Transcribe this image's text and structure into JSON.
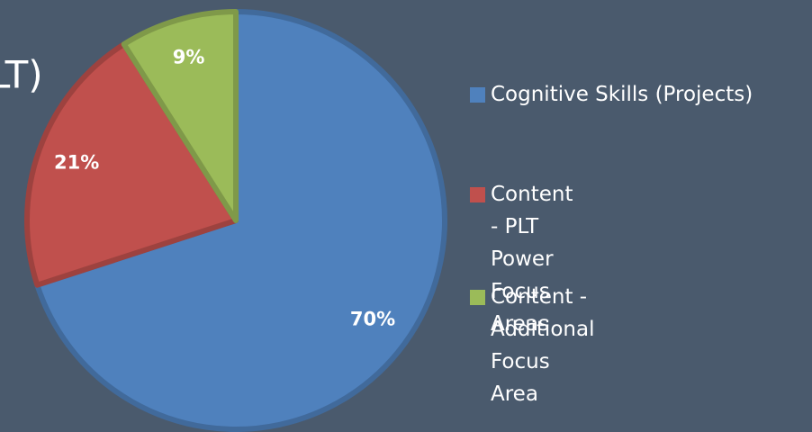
{
  "chart_data": {
    "type": "pie",
    "title": "LT)",
    "categories": [
      "Cognitive Skills (Projects)",
      "Content - PLT Power Focus Areas",
      "Content - Additional Focus Area"
    ],
    "values": [
      70,
      21,
      9
    ],
    "value_labels": [
      "70%",
      "21%",
      "9%"
    ],
    "colors": [
      "#4f81bd",
      "#c0504d",
      "#9bbb59"
    ],
    "legend": "right"
  }
}
